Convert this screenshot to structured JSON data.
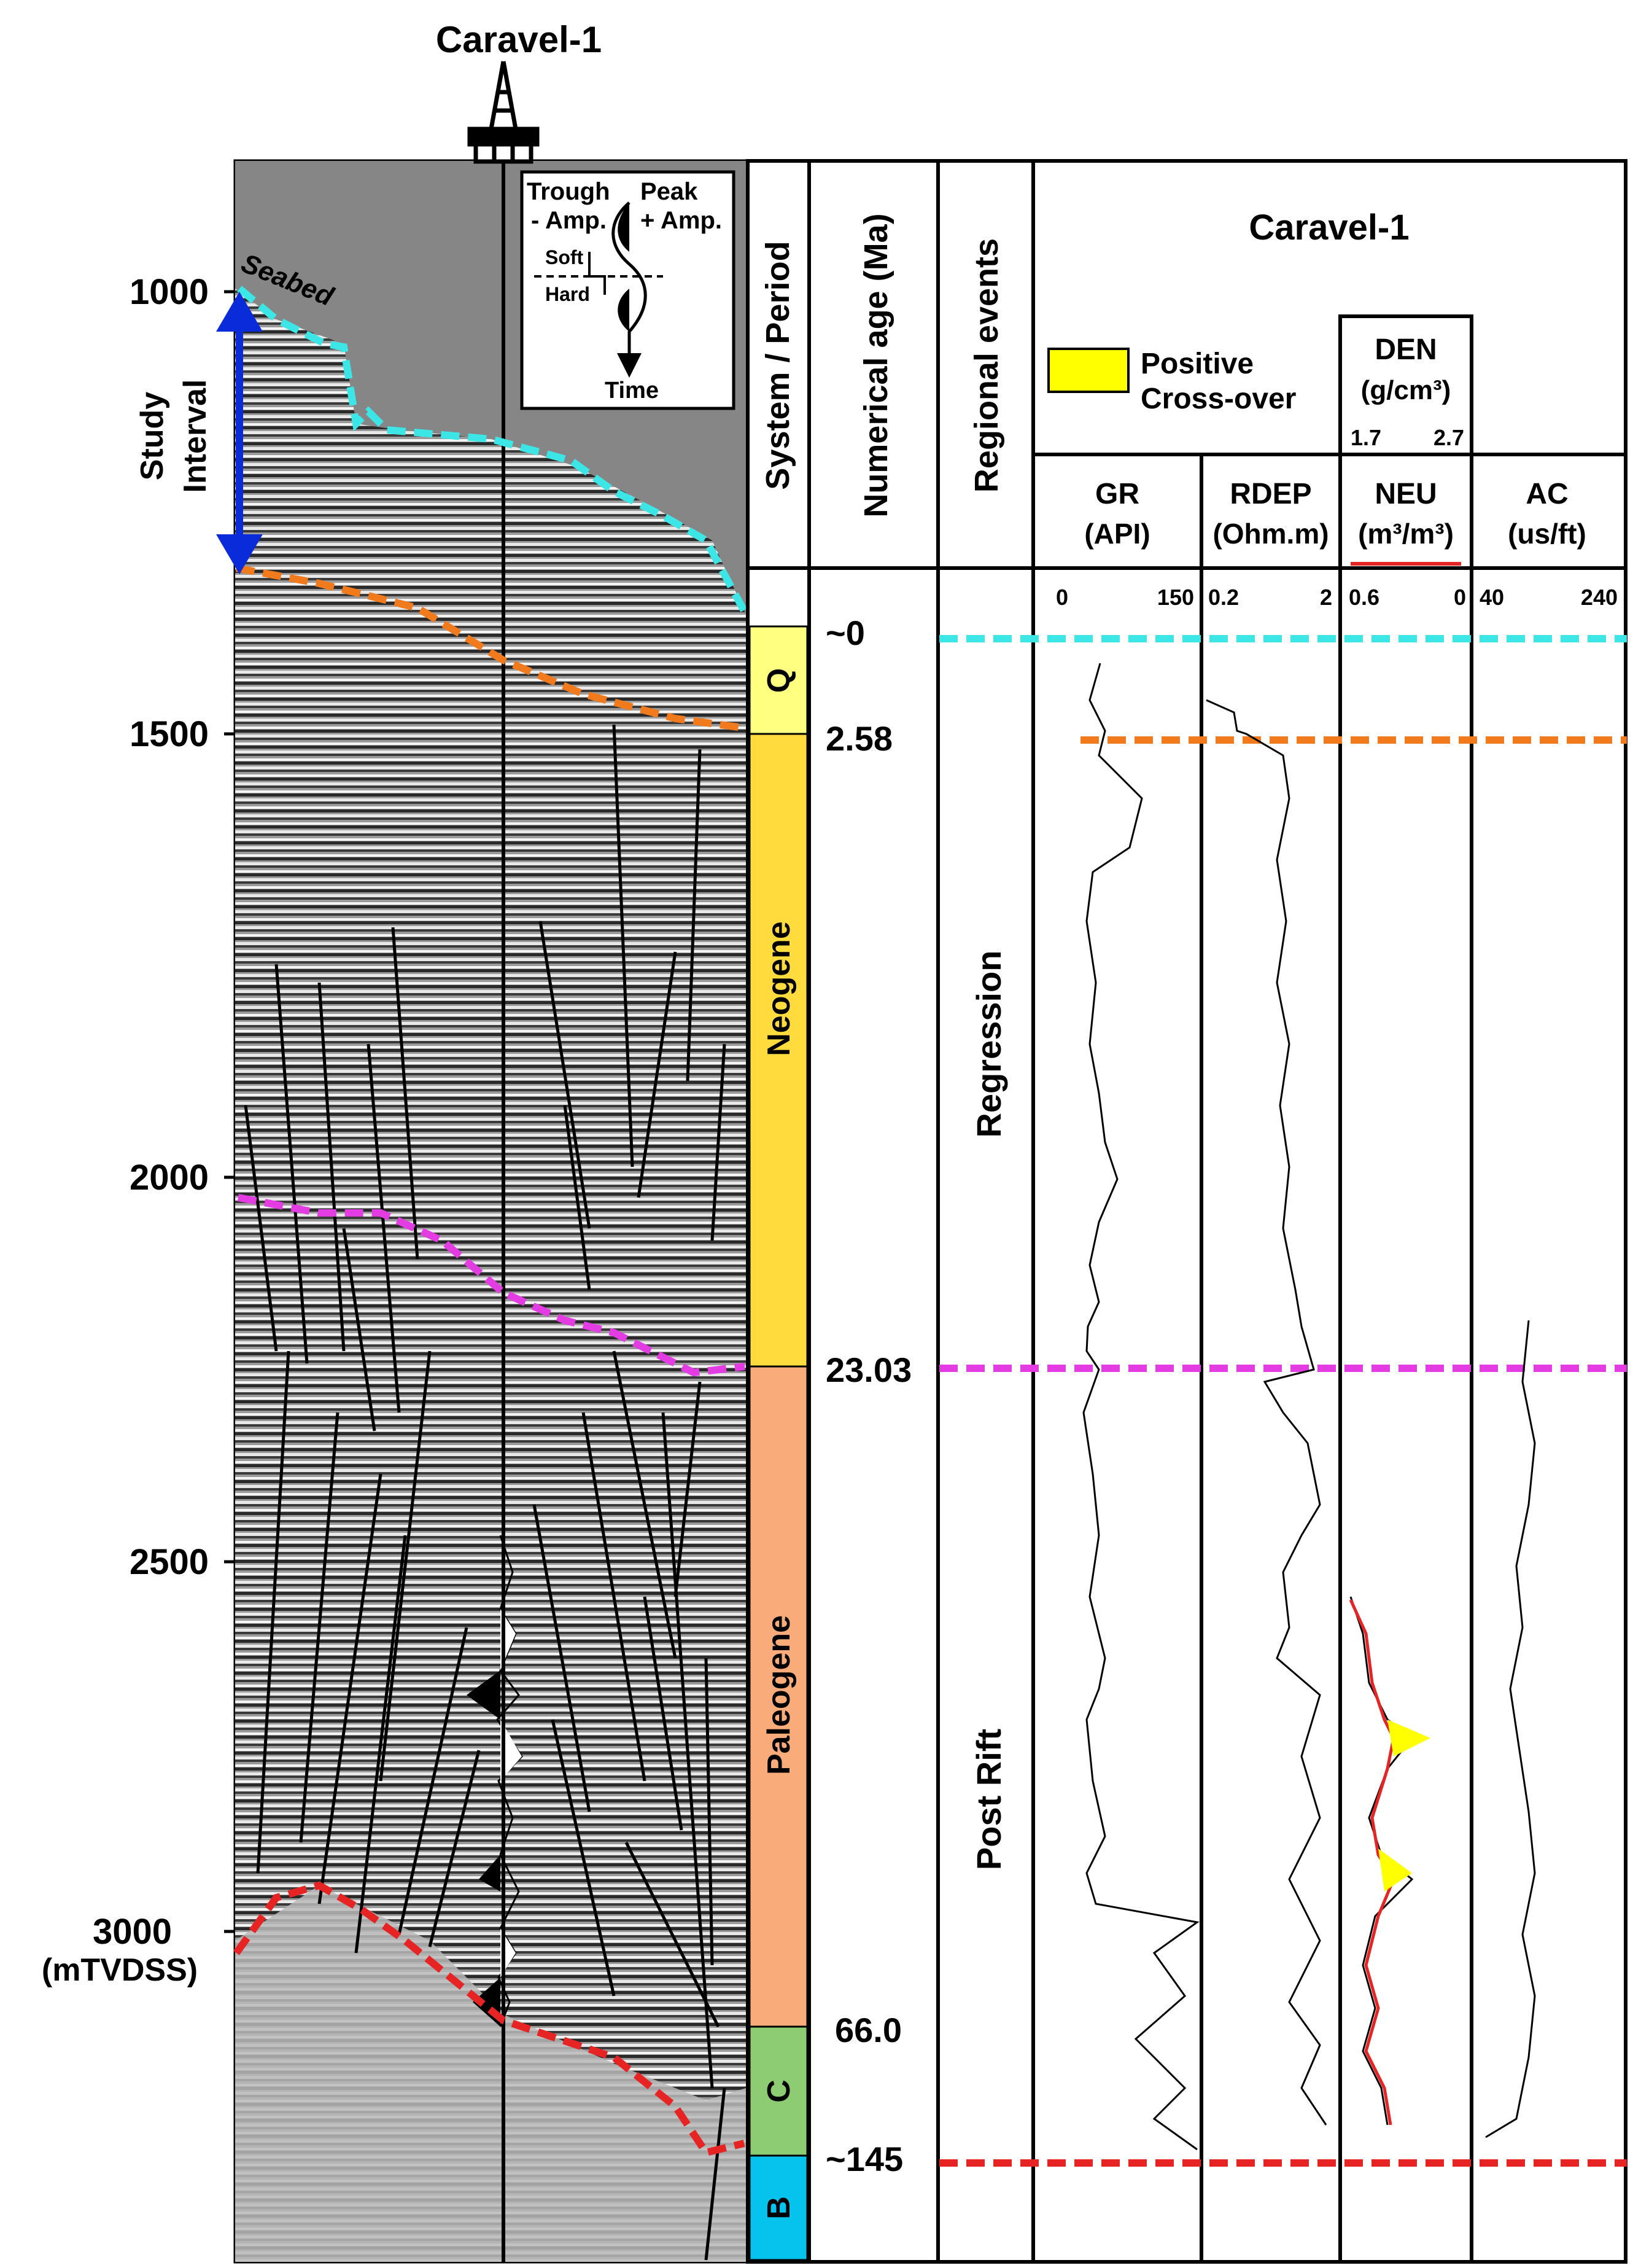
{
  "title": "Caravel-1",
  "seismic": {
    "seabed_label": "Seabed",
    "study_interval_line1": "Study",
    "study_interval_line2": "Interval",
    "depth_ticks": [
      1000,
      1500,
      2000,
      2500,
      3000
    ],
    "depth_unit": "(mTVDSS)",
    "legend": {
      "trough": "Trough",
      "peak": "Peak",
      "neg_amp": "- Amp.",
      "pos_amp": "+ Amp.",
      "soft": "Soft",
      "hard": "Hard",
      "time": "Time"
    }
  },
  "columns": {
    "system": "System / Period",
    "age": "Numerical age (Ma)",
    "events": "Regional events",
    "well": "Caravel-1"
  },
  "periods": [
    {
      "label": "Q",
      "color": "#ffff80"
    },
    {
      "label": "Neogene",
      "color": "#ffdb3e"
    },
    {
      "label": "Paleogene",
      "color": "#f9ab79"
    },
    {
      "label": "C",
      "color": "#8ecc73"
    },
    {
      "label": "B",
      "color": "#06c3ee"
    }
  ],
  "ages": [
    "~0",
    "2.58",
    "23.03",
    "66.0",
    "~145"
  ],
  "events": [
    "Regression",
    "Post Rift"
  ],
  "horizons": [
    {
      "name": "seabed",
      "color": "#3de6e6"
    },
    {
      "name": "quaternary-base",
      "color": "#f17a1c"
    },
    {
      "name": "neogene-base",
      "color": "#e23ce2"
    },
    {
      "name": "cretaceous-top",
      "color": "#e62424"
    }
  ],
  "logs": {
    "legend_label_1": "Positive",
    "legend_label_2": "Cross-over",
    "legend_color": "#ffff00",
    "den": {
      "name": "DEN",
      "unit": "(g/cm³)",
      "min": "1.7",
      "max": "2.7"
    },
    "gr": {
      "name": "GR",
      "unit": "(API)",
      "min": "0",
      "max": "150"
    },
    "rdep": {
      "name": "RDEP",
      "unit": "(Ohm.m)",
      "min": "0.2",
      "max": "2"
    },
    "neu": {
      "name": "NEU",
      "unit": "(m³/m³)",
      "min": "0.6",
      "max": "0",
      "color": "#e62424"
    },
    "ac": {
      "name": "AC",
      "unit": "(us/ft)",
      "min": "40",
      "max": "240"
    }
  }
}
